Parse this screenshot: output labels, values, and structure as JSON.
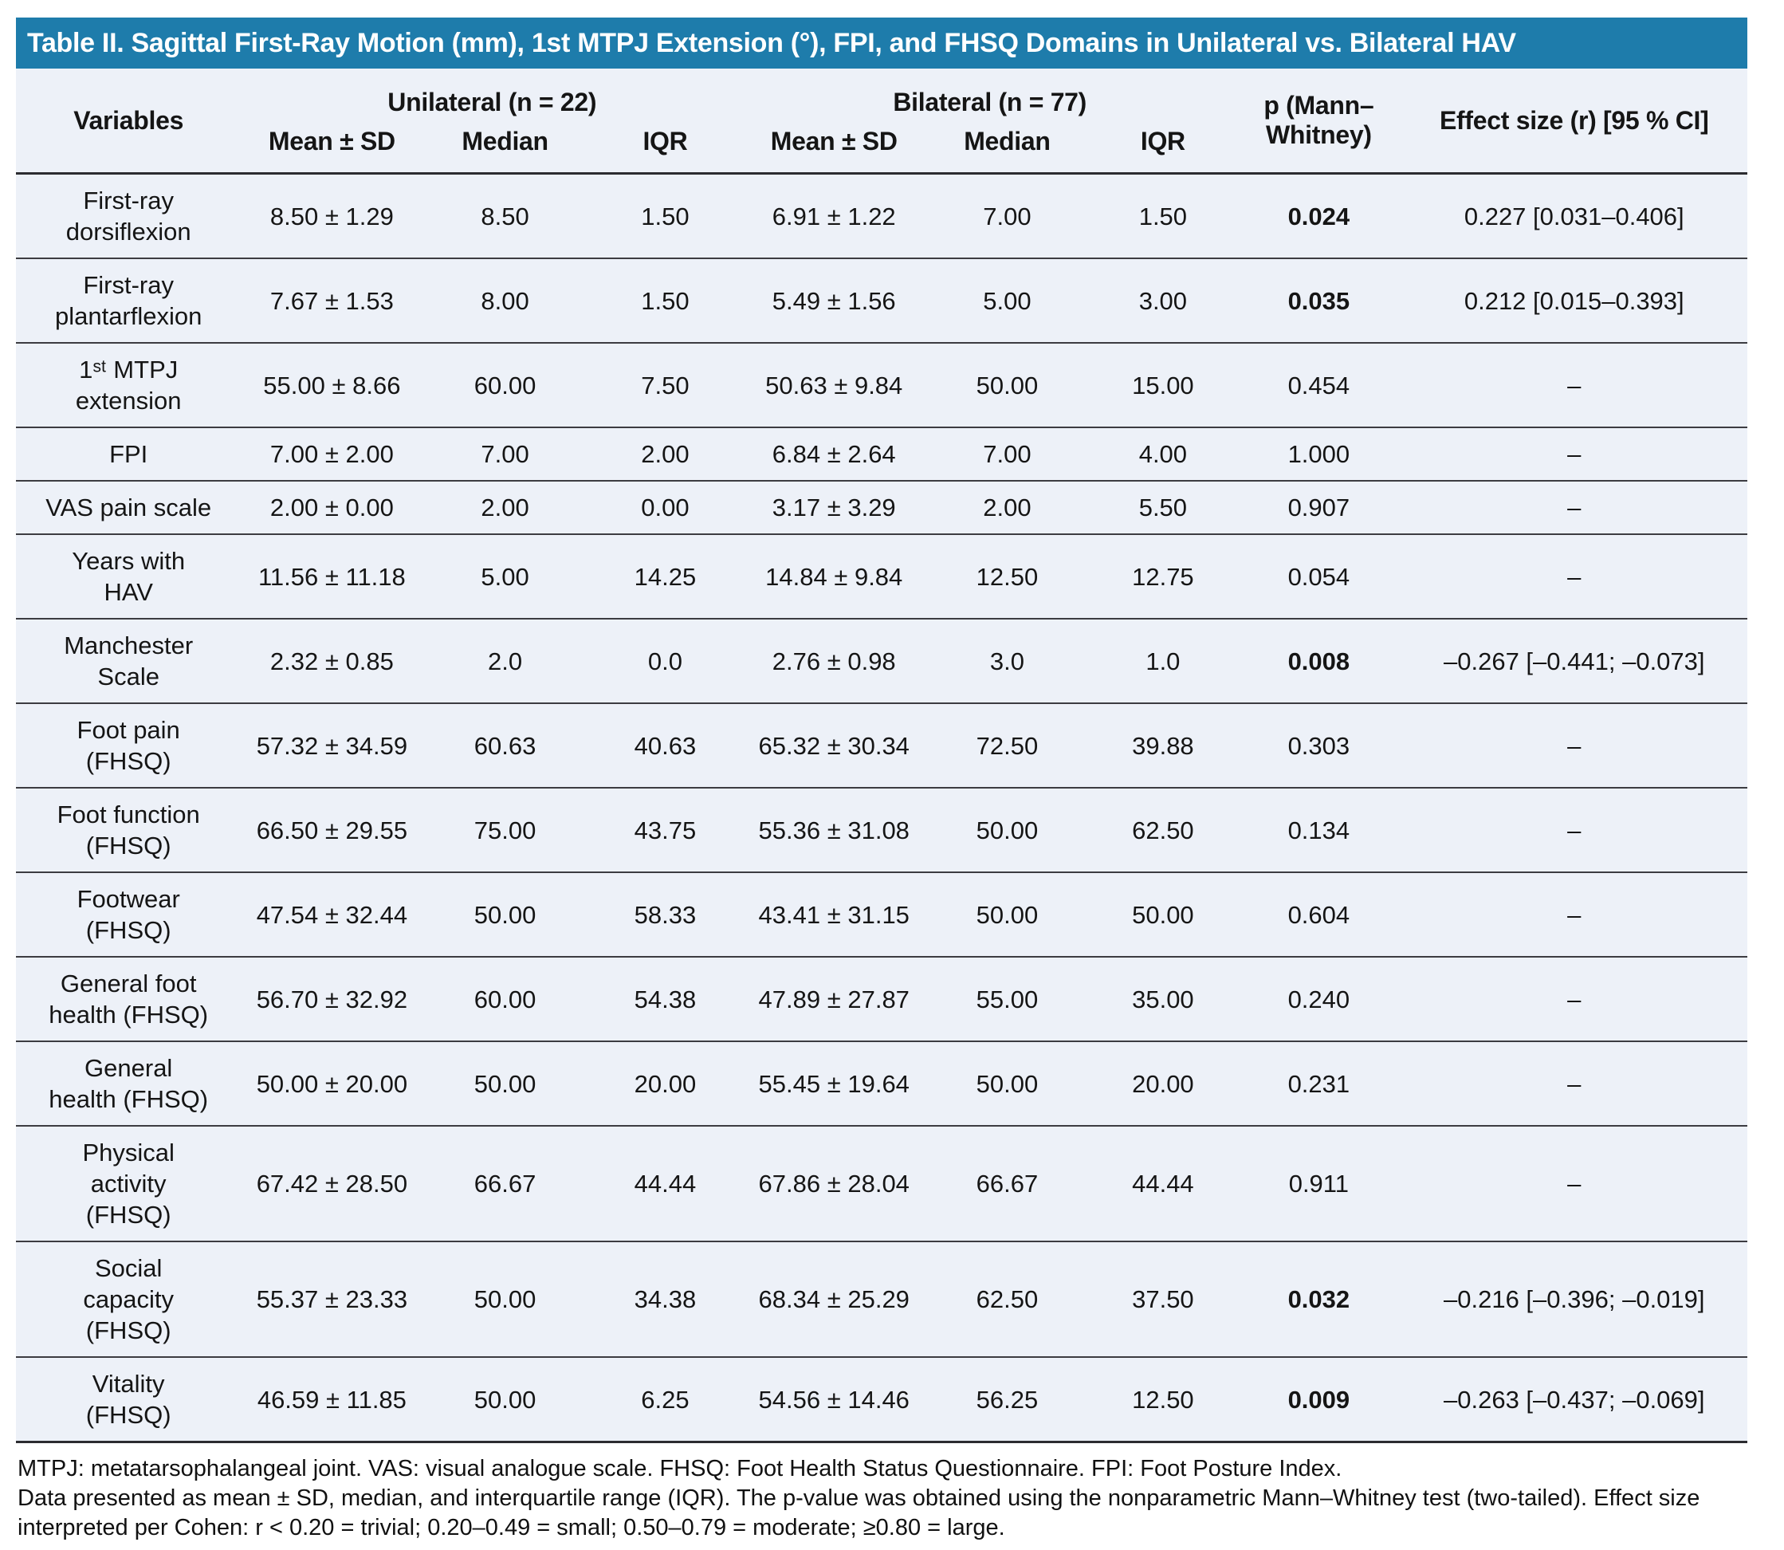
{
  "title": "Table II. Sagittal First-Ray Motion (mm), 1st MTPJ Extension (°), FPI, and FHSQ Domains in Unilateral vs. Bilateral HAV",
  "colors": {
    "accent": "#1e7cab",
    "table_bg": "#edf1f8",
    "line": "#3c3c41",
    "line_strong": "#2c2c30"
  },
  "header": {
    "variables": "Variables",
    "group_unilateral": "Unilateral (n = 22)",
    "group_bilateral": "Bilateral (n = 77)",
    "sub": [
      "Mean ± SD",
      "Median",
      "IQR"
    ],
    "p": "p (Mann–\nWhitney)",
    "effect": "Effect size (r) [95 % CI]"
  },
  "rows": [
    {
      "label": "First-ray\ndorsiflexion",
      "u_mean": "8.50 ± 1.29",
      "u_median": "8.50",
      "u_iqr": "1.50",
      "b_mean": "6.91 ± 1.22",
      "b_median": "7.00",
      "b_iqr": "1.50",
      "p": "0.024",
      "p_bold": true,
      "effect": "0.227 [0.031–0.406]"
    },
    {
      "label": "First-ray\nplantarflexion",
      "u_mean": "7.67 ± 1.53",
      "u_median": "8.00",
      "u_iqr": "1.50",
      "b_mean": "5.49 ± 1.56",
      "b_median": "5.00",
      "b_iqr": "3.00",
      "p": "0.035",
      "p_bold": true,
      "effect": "0.212 [0.015–0.393]"
    },
    {
      "label": "1ˢᵗ MTPJ\nextension",
      "u_mean": "55.00 ± 8.66",
      "u_median": "60.00",
      "u_iqr": "7.50",
      "b_mean": "50.63 ± 9.84",
      "b_median": "50.00",
      "b_iqr": "15.00",
      "p": "0.454",
      "p_bold": false,
      "effect": "–"
    },
    {
      "label": "FPI",
      "u_mean": "7.00 ± 2.00",
      "u_median": "7.00",
      "u_iqr": "2.00",
      "b_mean": "6.84 ± 2.64",
      "b_median": "7.00",
      "b_iqr": "4.00",
      "p": "1.000",
      "p_bold": false,
      "effect": "–"
    },
    {
      "label": "VAS pain scale",
      "u_mean": "2.00 ± 0.00",
      "u_median": "2.00",
      "u_iqr": "0.00",
      "b_mean": "3.17 ± 3.29",
      "b_median": "2.00",
      "b_iqr": "5.50",
      "p": "0.907",
      "p_bold": false,
      "effect": "–"
    },
    {
      "label": "Years with\nHAV",
      "u_mean": "11.56 ± 11.18",
      "u_median": "5.00",
      "u_iqr": "14.25",
      "b_mean": "14.84 ± 9.84",
      "b_median": "12.50",
      "b_iqr": "12.75",
      "p": "0.054",
      "p_bold": false,
      "effect": "–"
    },
    {
      "label": "Manchester\nScale",
      "u_mean": "2.32 ± 0.85",
      "u_median": "2.0",
      "u_iqr": "0.0",
      "b_mean": "2.76 ± 0.98",
      "b_median": "3.0",
      "b_iqr": "1.0",
      "p": "0.008",
      "p_bold": true,
      "effect": "–0.267 [–0.441; –0.073]"
    },
    {
      "label": "Foot pain\n(FHSQ)",
      "u_mean": "57.32 ± 34.59",
      "u_median": "60.63",
      "u_iqr": "40.63",
      "b_mean": "65.32 ± 30.34",
      "b_median": "72.50",
      "b_iqr": "39.88",
      "p": "0.303",
      "p_bold": false,
      "effect": "–"
    },
    {
      "label": "Foot function\n(FHSQ)",
      "u_mean": "66.50 ± 29.55",
      "u_median": "75.00",
      "u_iqr": "43.75",
      "b_mean": "55.36 ± 31.08",
      "b_median": "50.00",
      "b_iqr": "62.50",
      "p": "0.134",
      "p_bold": false,
      "effect": "–"
    },
    {
      "label": "Footwear\n(FHSQ)",
      "u_mean": "47.54 ± 32.44",
      "u_median": "50.00",
      "u_iqr": "58.33",
      "b_mean": "43.41 ± 31.15",
      "b_median": "50.00",
      "b_iqr": "50.00",
      "p": "0.604",
      "p_bold": false,
      "effect": "–"
    },
    {
      "label": "General foot\nhealth (FHSQ)",
      "u_mean": "56.70 ± 32.92",
      "u_median": "60.00",
      "u_iqr": "54.38",
      "b_mean": "47.89 ± 27.87",
      "b_median": "55.00",
      "b_iqr": "35.00",
      "p": "0.240",
      "p_bold": false,
      "effect": "–"
    },
    {
      "label": "General\nhealth (FHSQ)",
      "u_mean": "50.00 ± 20.00",
      "u_median": "50.00",
      "u_iqr": "20.00",
      "b_mean": "55.45 ± 19.64",
      "b_median": "50.00",
      "b_iqr": "20.00",
      "p": "0.231",
      "p_bold": false,
      "effect": "–"
    },
    {
      "label": "Physical\nactivity\n(FHSQ)",
      "u_mean": "67.42 ± 28.50",
      "u_median": "66.67",
      "u_iqr": "44.44",
      "b_mean": "67.86 ± 28.04",
      "b_median": "66.67",
      "b_iqr": "44.44",
      "p": "0.911",
      "p_bold": false,
      "effect": "–"
    },
    {
      "label": "Social\ncapacity\n(FHSQ)",
      "u_mean": "55.37 ± 23.33",
      "u_median": "50.00",
      "u_iqr": "34.38",
      "b_mean": "68.34 ± 25.29",
      "b_median": "62.50",
      "b_iqr": "37.50",
      "p": "0.032",
      "p_bold": true,
      "effect": "–0.216 [–0.396; –0.019]"
    },
    {
      "label": "Vitality\n(FHSQ)",
      "u_mean": "46.59 ± 11.85",
      "u_median": "50.00",
      "u_iqr": "6.25",
      "b_mean": "54.56 ± 14.46",
      "b_median": "56.25",
      "b_iqr": "12.50",
      "p": "0.009",
      "p_bold": true,
      "effect": "–0.263 [–0.437; –0.069]"
    }
  ],
  "footnotes": [
    "MTPJ: metatarsophalangeal joint. VAS: visual analogue scale. FHSQ: Foot Health Status Questionnaire. FPI: Foot Posture Index.",
    "Data presented as mean ± SD, median, and interquartile range (IQR). The p-value was obtained using the nonparametric Mann–Whitney test (two-tailed). Effect size\ninterpreted per Cohen: r < 0.20 = trivial; 0.20–0.49 = small; 0.50–0.79 = moderate; ≥0.80 = large."
  ]
}
